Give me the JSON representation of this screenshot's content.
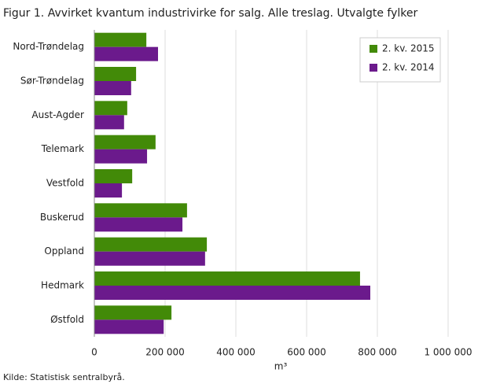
{
  "chart_data": {
    "type": "bar",
    "orientation": "horizontal",
    "title": "Figur 1. Avvirket kvantum industrivirke for salg. Alle treslag. Utvalgte fylker",
    "categories": [
      "Nord-Trøndelag",
      "Sør-Trøndelag",
      "Aust-Agder",
      "Telemark",
      "Vestfold",
      "Buskerud",
      "Oppland",
      "Hedmark",
      "Østfold"
    ],
    "series": [
      {
        "name": "2. kv. 2015",
        "color": "#428a08",
        "values": [
          147000,
          118000,
          93000,
          173000,
          107000,
          262000,
          318000,
          751000,
          218000
        ]
      },
      {
        "name": "2. kv. 2014",
        "color": "#6b1a8c",
        "values": [
          180000,
          104000,
          84000,
          149000,
          78000,
          249000,
          313000,
          780000,
          196000
        ]
      }
    ],
    "xlim": [
      0,
      1000000
    ],
    "xticks": [
      0,
      {
        "value": 200000,
        "label": "200 000"
      },
      {
        "value": 400000,
        "label": "400 000"
      },
      {
        "value": 600000,
        "label": "600 000"
      },
      {
        "value": 800000,
        "label": "800 000"
      },
      {
        "value": 1000000,
        "label": "1 000 000"
      }
    ],
    "x_label": "m³",
    "grid": true,
    "legend": "top-right",
    "source": "Kilde: Statistisk sentralbyrå."
  }
}
